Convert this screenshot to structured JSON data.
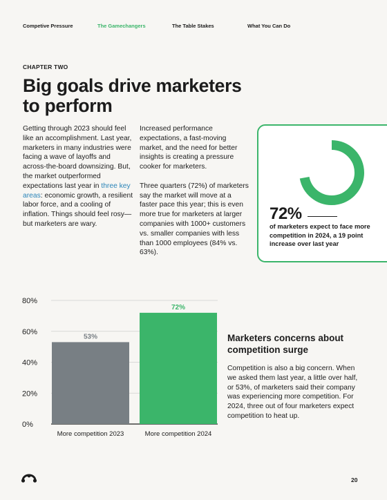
{
  "nav": {
    "items": [
      "Competive Pressure",
      "The Gamechangers",
      "The Table Stakes",
      "What You Can Do"
    ],
    "active_index": 1
  },
  "chapter": "CHAPTER TWO",
  "title": "Big goals drive marketers to perform",
  "intro": {
    "p1_before": "Getting through 2023 should feel like an accomplishment. Last year, marketers in many industries were facing a wave of layoffs and across-the-board downsizing. But, the market outperformed expectations last year in ",
    "p1_link": "three key areas",
    "p1_after": ": economic growth, a resilient labor force, and a cooling of inflation. Things should feel rosy—but marketers are wary.",
    "p2": "Increased performance expectations, a fast-moving market, and the need for better insights is creating a pressure cooker for marketers.",
    "p3": "Three quarters (72%) of marketers say the market will move at a faster pace this year; this is even more true for marketers at larger companies with 1000+ customers vs. smaller companies with less than 1000 employees (84% vs. 63%)."
  },
  "stat_card": {
    "value": "72%",
    "fraction": 0.72,
    "text": "of marketers expect to face more competition in 2024, a 19 point increase over last year"
  },
  "chart_data": {
    "type": "bar",
    "categories": [
      "More competition 2023",
      "More competition 2024"
    ],
    "values": [
      53,
      72
    ],
    "value_labels": [
      "53%",
      "72%"
    ],
    "y_ticks": [
      "0%",
      "20%",
      "40%",
      "60%",
      "80%"
    ],
    "ylim": [
      0,
      80
    ],
    "colors": [
      "#787f84",
      "#3bb56a"
    ],
    "title": "",
    "xlabel": "",
    "ylabel": ""
  },
  "section2": {
    "heading": "Marketers concerns about competition surge",
    "body": "Competition is also a big concern. When we asked them last year, a little over half, or 53%, of marketers said their company was experiencing more competition. For 2024, three out of four marketers expect competition to heat up."
  },
  "colors": {
    "accent": "#3bb56a",
    "link": "#2a84b8",
    "gray_bar": "#787f84",
    "background": "#f7f6f3"
  },
  "logo_icon": "surveymonkey-logo-icon",
  "page_number": "20"
}
